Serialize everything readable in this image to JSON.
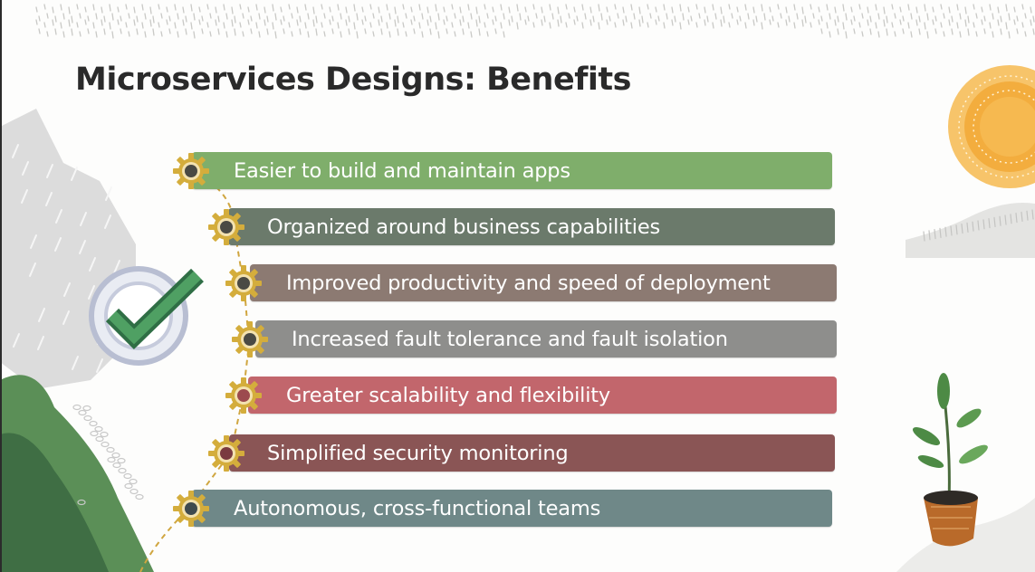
{
  "title": "Microservices Designs: Benefits",
  "benefits": [
    {
      "label": "Easier to build and maintain apps",
      "color": "#7fae6b",
      "gear_core": "#4a4a44"
    },
    {
      "label": "Organized around business capabilities",
      "color": "#6b7a6b",
      "gear_core": "#4a4a44"
    },
    {
      "label": "Improved productivity and speed of deployment",
      "color": "#8c7a72",
      "gear_core": "#4a4a44"
    },
    {
      "label": "Increased fault tolerance and fault isolation",
      "color": "#8e8e8c",
      "gear_core": "#4a4a44"
    },
    {
      "label": "Greater scalability and flexibility",
      "color": "#c2666c",
      "gear_core": "#9c4a4e"
    },
    {
      "label": "Simplified security monitoring",
      "color": "#8a5555",
      "gear_core": "#7a3a40"
    },
    {
      "label": "Autonomous, cross-functional teams",
      "color": "#6f8888",
      "gear_core": "#3f4a4e"
    }
  ],
  "colors": {
    "gear_ring": "#d4ad3c",
    "check": "#3f8a56",
    "sun": "#f2a93b"
  },
  "icons": [
    "gear-icon",
    "checkmark-icon",
    "sun-icon",
    "plant-icon"
  ]
}
